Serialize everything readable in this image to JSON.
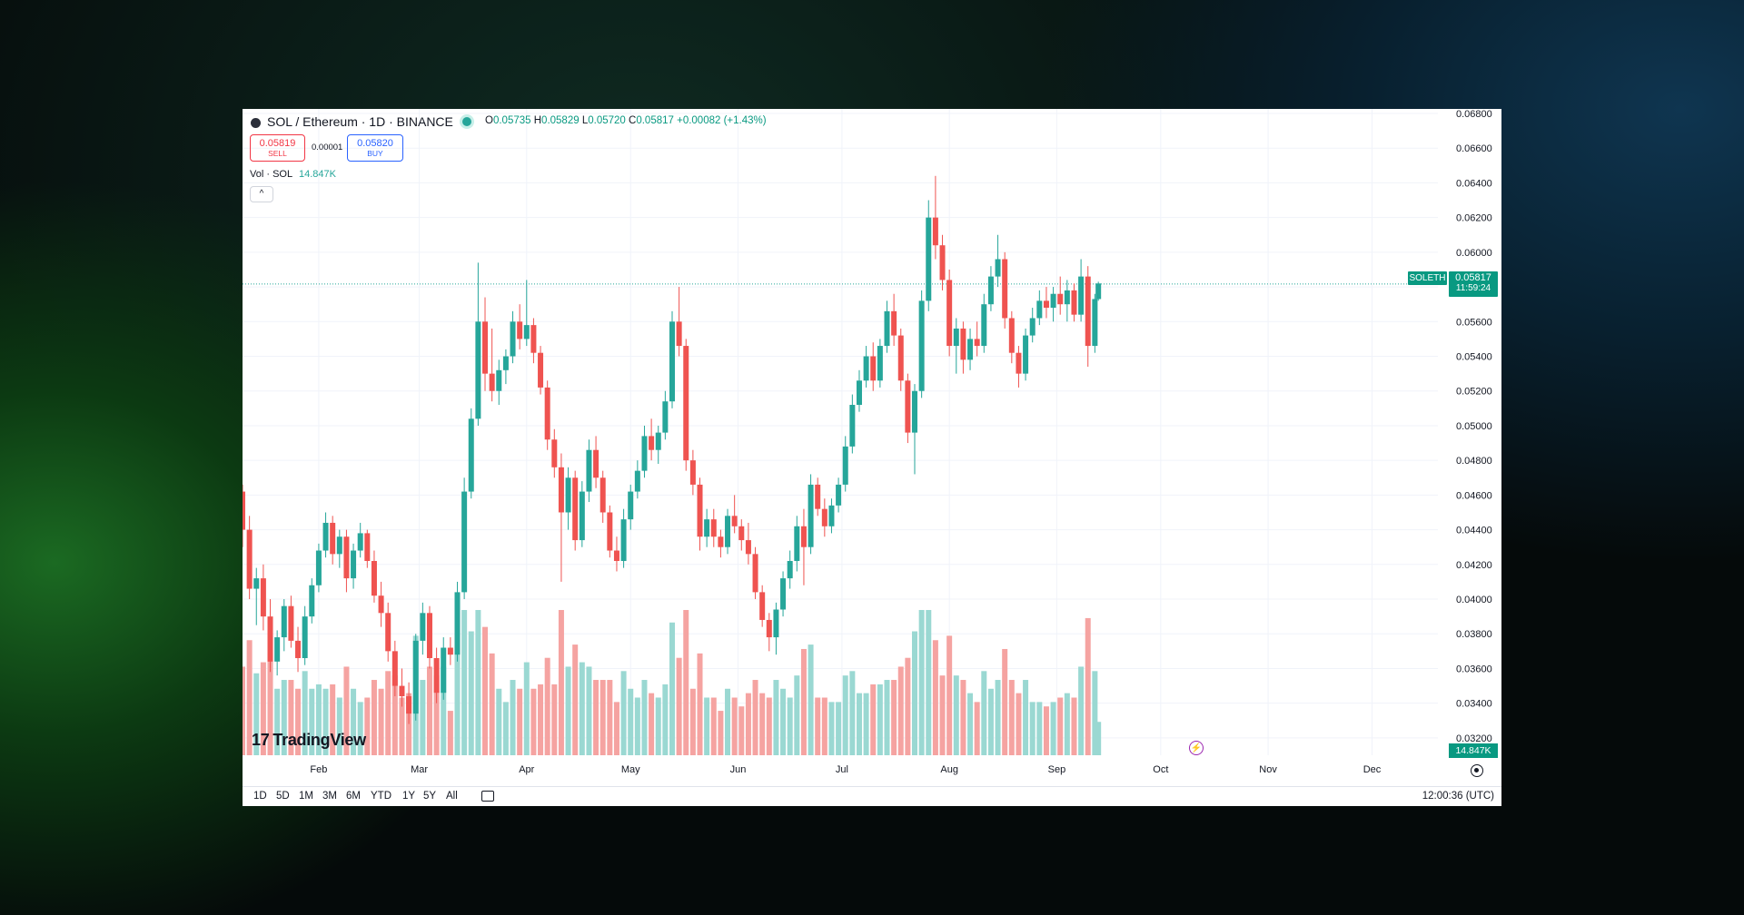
{
  "header": {
    "symbol_title": "SOL / Ethereum · 1D · BINANCE",
    "ohlc": {
      "o_label": "O",
      "o": "0.05735",
      "h_label": "H",
      "h": "0.05829",
      "l_label": "L",
      "l": "0.05720",
      "c_label": "C",
      "c": "0.05817",
      "change": "+0.00082 (+1.43%)"
    },
    "sell_price": "0.05819",
    "sell_label": "SELL",
    "spread": "0.00001",
    "buy_price": "0.05820",
    "buy_label": "BUY",
    "volume_label": "Vol · SOL",
    "volume_value": "14.847K",
    "collapse_glyph": "^"
  },
  "price_axis": {
    "ticks": [
      "0.06800",
      "0.06600",
      "0.06400",
      "0.06200",
      "0.06000",
      "0.05800",
      "0.05600",
      "0.05400",
      "0.05200",
      "0.05000",
      "0.04800",
      "0.04600",
      "0.04400",
      "0.04200",
      "0.04000",
      "0.03800",
      "0.03600",
      "0.03400",
      "0.03200"
    ],
    "symbol_tag": "SOLETH",
    "last_price": "0.05817",
    "countdown": "11:59:24",
    "volume_tag": "14.847K"
  },
  "time_axis": {
    "months": [
      "Feb",
      "Mar",
      "Apr",
      "May",
      "Jun",
      "Jul",
      "Aug",
      "Sep",
      "Oct",
      "Nov",
      "Dec"
    ]
  },
  "timeframes": [
    "1D",
    "5D",
    "1M",
    "3M",
    "6M",
    "YTD",
    "1Y",
    "5Y",
    "All"
  ],
  "clock": "12:00:36 (UTC)",
  "logo_text": "TradingView",
  "colors": {
    "up": "#26a69a",
    "down": "#ef5350",
    "up_volume": "#9ad8d2",
    "down_volume": "#f5a3a1",
    "accent_blue": "#2962ff",
    "sell_red": "#f23645"
  },
  "icons": [
    "chart-symbol-icon",
    "live-status-icon",
    "chevron-up-icon",
    "tradingview-logo-icon",
    "lightning-icon",
    "settings-icon",
    "calendar-icon"
  ],
  "chart_data": {
    "type": "candlestick",
    "x_unit": "date (2024)",
    "ylim": [
      0.031,
      0.068
    ],
    "last_price_line": 0.05817,
    "ohlc": [
      [
        "2024-01-10",
        0.0462,
        0.0466,
        0.043,
        0.044
      ],
      [
        "2024-01-12",
        0.044,
        0.0448,
        0.04,
        0.0406
      ],
      [
        "2024-01-14",
        0.0406,
        0.0418,
        0.0385,
        0.0412
      ],
      [
        "2024-01-16",
        0.0412,
        0.042,
        0.0382,
        0.039
      ],
      [
        "2024-01-18",
        0.039,
        0.04,
        0.0358,
        0.0364
      ],
      [
        "2024-01-20",
        0.0364,
        0.0382,
        0.0356,
        0.0378
      ],
      [
        "2024-01-22",
        0.0378,
        0.04,
        0.037,
        0.0396
      ],
      [
        "2024-01-24",
        0.0396,
        0.0402,
        0.0372,
        0.0376
      ],
      [
        "2024-01-26",
        0.0376,
        0.0384,
        0.0358,
        0.0366
      ],
      [
        "2024-01-28",
        0.0366,
        0.0396,
        0.0362,
        0.039
      ],
      [
        "2024-01-30",
        0.039,
        0.0412,
        0.0386,
        0.0408
      ],
      [
        "2024-02-01",
        0.0408,
        0.0432,
        0.0404,
        0.0428
      ],
      [
        "2024-02-03",
        0.0428,
        0.045,
        0.0424,
        0.0444
      ],
      [
        "2024-02-05",
        0.0444,
        0.0448,
        0.042,
        0.0426
      ],
      [
        "2024-02-07",
        0.0426,
        0.044,
        0.0418,
        0.0436
      ],
      [
        "2024-02-09",
        0.0436,
        0.044,
        0.0404,
        0.0412
      ],
      [
        "2024-02-11",
        0.0412,
        0.0432,
        0.0406,
        0.0428
      ],
      [
        "2024-02-13",
        0.0428,
        0.0444,
        0.0424,
        0.0438
      ],
      [
        "2024-02-15",
        0.0438,
        0.044,
        0.0418,
        0.0422
      ],
      [
        "2024-02-17",
        0.0422,
        0.0428,
        0.0398,
        0.0402
      ],
      [
        "2024-02-19",
        0.0402,
        0.041,
        0.0384,
        0.0392
      ],
      [
        "2024-02-21",
        0.0392,
        0.0398,
        0.0364,
        0.037
      ],
      [
        "2024-02-23",
        0.037,
        0.0376,
        0.0344,
        0.035
      ],
      [
        "2024-02-25",
        0.035,
        0.036,
        0.0338,
        0.0344
      ],
      [
        "2024-02-27",
        0.0344,
        0.0352,
        0.0328,
        0.0334
      ],
      [
        "2024-02-29",
        0.0334,
        0.038,
        0.033,
        0.0376
      ],
      [
        "2024-03-02",
        0.0376,
        0.0398,
        0.0368,
        0.0392
      ],
      [
        "2024-03-04",
        0.0392,
        0.0396,
        0.036,
        0.0366
      ],
      [
        "2024-03-06",
        0.0366,
        0.0372,
        0.034,
        0.0346
      ],
      [
        "2024-03-08",
        0.0346,
        0.0378,
        0.0342,
        0.0372
      ],
      [
        "2024-03-10",
        0.0372,
        0.0378,
        0.0362,
        0.0368
      ],
      [
        "2024-03-12",
        0.0368,
        0.041,
        0.0364,
        0.0404
      ],
      [
        "2024-03-14",
        0.0404,
        0.047,
        0.04,
        0.0462
      ],
      [
        "2024-03-16",
        0.0462,
        0.051,
        0.0458,
        0.0504
      ],
      [
        "2024-03-18",
        0.0504,
        0.0594,
        0.05,
        0.056
      ],
      [
        "2024-03-20",
        0.056,
        0.0574,
        0.052,
        0.053
      ],
      [
        "2024-03-22",
        0.053,
        0.0556,
        0.0514,
        0.052
      ],
      [
        "2024-03-24",
        0.052,
        0.0538,
        0.0512,
        0.0532
      ],
      [
        "2024-03-26",
        0.0532,
        0.0544,
        0.0524,
        0.054
      ],
      [
        "2024-03-28",
        0.054,
        0.0566,
        0.0536,
        0.056
      ],
      [
        "2024-03-30",
        0.056,
        0.057,
        0.0544,
        0.055
      ],
      [
        "2024-04-01",
        0.055,
        0.0584,
        0.0546,
        0.0558
      ],
      [
        "2024-04-03",
        0.0558,
        0.0562,
        0.0536,
        0.0542
      ],
      [
        "2024-04-05",
        0.0542,
        0.0546,
        0.0518,
        0.0522
      ],
      [
        "2024-04-07",
        0.0522,
        0.0526,
        0.0486,
        0.0492
      ],
      [
        "2024-04-09",
        0.0492,
        0.0498,
        0.047,
        0.0476
      ],
      [
        "2024-04-11",
        0.0476,
        0.0484,
        0.041,
        0.045
      ],
      [
        "2024-04-13",
        0.045,
        0.0476,
        0.044,
        0.047
      ],
      [
        "2024-04-15",
        0.047,
        0.0474,
        0.0428,
        0.0434
      ],
      [
        "2024-04-17",
        0.0434,
        0.0468,
        0.043,
        0.0462
      ],
      [
        "2024-04-19",
        0.0462,
        0.0492,
        0.0456,
        0.0486
      ],
      [
        "2024-04-21",
        0.0486,
        0.0494,
        0.0464,
        0.047
      ],
      [
        "2024-04-23",
        0.047,
        0.0474,
        0.0444,
        0.045
      ],
      [
        "2024-04-25",
        0.045,
        0.0454,
        0.0424,
        0.0428
      ],
      [
        "2024-04-27",
        0.0428,
        0.0436,
        0.0416,
        0.0422
      ],
      [
        "2024-04-29",
        0.0422,
        0.0452,
        0.0418,
        0.0446
      ],
      [
        "2024-05-01",
        0.0446,
        0.0466,
        0.044,
        0.0462
      ],
      [
        "2024-05-03",
        0.0462,
        0.048,
        0.0458,
        0.0474
      ],
      [
        "2024-05-05",
        0.0474,
        0.05,
        0.047,
        0.0494
      ],
      [
        "2024-05-07",
        0.0494,
        0.0504,
        0.048,
        0.0486
      ],
      [
        "2024-05-09",
        0.0486,
        0.05,
        0.0478,
        0.0496
      ],
      [
        "2024-05-11",
        0.0496,
        0.052,
        0.0492,
        0.0514
      ],
      [
        "2024-05-13",
        0.0514,
        0.0566,
        0.051,
        0.056
      ],
      [
        "2024-05-15",
        0.056,
        0.058,
        0.054,
        0.0546
      ],
      [
        "2024-05-17",
        0.0546,
        0.055,
        0.0474,
        0.048
      ],
      [
        "2024-05-19",
        0.048,
        0.0486,
        0.046,
        0.0466
      ],
      [
        "2024-05-21",
        0.0466,
        0.047,
        0.0428,
        0.0436
      ],
      [
        "2024-05-23",
        0.0436,
        0.0452,
        0.043,
        0.0446
      ],
      [
        "2024-05-25",
        0.0446,
        0.0452,
        0.043,
        0.0436
      ],
      [
        "2024-05-27",
        0.0436,
        0.044,
        0.0424,
        0.043
      ],
      [
        "2024-05-29",
        0.043,
        0.0452,
        0.0426,
        0.0448
      ],
      [
        "2024-05-31",
        0.0448,
        0.046,
        0.0438,
        0.0442
      ],
      [
        "2024-06-02",
        0.0442,
        0.0446,
        0.0428,
        0.0434
      ],
      [
        "2024-06-04",
        0.0434,
        0.0444,
        0.042,
        0.0426
      ],
      [
        "2024-06-06",
        0.0426,
        0.043,
        0.04,
        0.0404
      ],
      [
        "2024-06-08",
        0.0404,
        0.0408,
        0.0384,
        0.0388
      ],
      [
        "2024-06-10",
        0.0388,
        0.0392,
        0.037,
        0.0378
      ],
      [
        "2024-06-12",
        0.0378,
        0.0398,
        0.0368,
        0.0394
      ],
      [
        "2024-06-14",
        0.0394,
        0.0416,
        0.039,
        0.0412
      ],
      [
        "2024-06-16",
        0.0412,
        0.0428,
        0.0406,
        0.0422
      ],
      [
        "2024-06-18",
        0.0422,
        0.0448,
        0.0416,
        0.0442
      ],
      [
        "2024-06-20",
        0.0442,
        0.0452,
        0.0408,
        0.043
      ],
      [
        "2024-06-22",
        0.043,
        0.0472,
        0.0426,
        0.0466
      ],
      [
        "2024-06-24",
        0.0466,
        0.047,
        0.0448,
        0.0452
      ],
      [
        "2024-06-26",
        0.0452,
        0.0458,
        0.0436,
        0.0442
      ],
      [
        "2024-06-28",
        0.0442,
        0.0458,
        0.0438,
        0.0454
      ],
      [
        "2024-06-30",
        0.0454,
        0.047,
        0.045,
        0.0466
      ],
      [
        "2024-07-02",
        0.0466,
        0.0494,
        0.0462,
        0.0488
      ],
      [
        "2024-07-04",
        0.0488,
        0.0518,
        0.0484,
        0.0512
      ],
      [
        "2024-07-06",
        0.0512,
        0.0532,
        0.0508,
        0.0526
      ],
      [
        "2024-07-08",
        0.0526,
        0.0546,
        0.0522,
        0.054
      ],
      [
        "2024-07-10",
        0.054,
        0.0548,
        0.052,
        0.0526
      ],
      [
        "2024-07-12",
        0.0526,
        0.055,
        0.0522,
        0.0546
      ],
      [
        "2024-07-14",
        0.0546,
        0.0572,
        0.0542,
        0.0566
      ],
      [
        "2024-07-16",
        0.0566,
        0.0576,
        0.0546,
        0.0552
      ],
      [
        "2024-07-18",
        0.0552,
        0.0556,
        0.052,
        0.0526
      ],
      [
        "2024-07-20",
        0.0526,
        0.053,
        0.049,
        0.0496
      ],
      [
        "2024-07-22",
        0.0496,
        0.0524,
        0.0472,
        0.052
      ],
      [
        "2024-07-24",
        0.052,
        0.0578,
        0.0516,
        0.0572
      ],
      [
        "2024-07-26",
        0.0572,
        0.063,
        0.0566,
        0.062
      ],
      [
        "2024-07-28",
        0.062,
        0.0644,
        0.0596,
        0.0604
      ],
      [
        "2024-07-30",
        0.0604,
        0.061,
        0.0578,
        0.0584
      ],
      [
        "2024-08-01",
        0.0584,
        0.059,
        0.054,
        0.0546
      ],
      [
        "2024-08-03",
        0.0546,
        0.0562,
        0.053,
        0.0556
      ],
      [
        "2024-08-05",
        0.0556,
        0.056,
        0.053,
        0.0538
      ],
      [
        "2024-08-07",
        0.0538,
        0.0556,
        0.0532,
        0.055
      ],
      [
        "2024-08-09",
        0.055,
        0.056,
        0.054,
        0.0546
      ],
      [
        "2024-08-11",
        0.0546,
        0.0576,
        0.0542,
        0.057
      ],
      [
        "2024-08-13",
        0.057,
        0.0592,
        0.0566,
        0.0586
      ],
      [
        "2024-08-15",
        0.0586,
        0.061,
        0.058,
        0.0596
      ],
      [
        "2024-08-17",
        0.0596,
        0.06,
        0.0556,
        0.0562
      ],
      [
        "2024-08-19",
        0.0562,
        0.0566,
        0.0536,
        0.0542
      ],
      [
        "2024-08-21",
        0.0542,
        0.0546,
        0.0522,
        0.053
      ],
      [
        "2024-08-23",
        0.053,
        0.0556,
        0.0526,
        0.0552
      ],
      [
        "2024-08-25",
        0.0552,
        0.0568,
        0.0548,
        0.0562
      ],
      [
        "2024-08-27",
        0.0562,
        0.0578,
        0.0558,
        0.0572
      ],
      [
        "2024-08-29",
        0.0572,
        0.058,
        0.0562,
        0.0568
      ],
      [
        "2024-08-31",
        0.0568,
        0.058,
        0.056,
        0.0576
      ],
      [
        "2024-09-02",
        0.0576,
        0.0586,
        0.0564,
        0.057
      ],
      [
        "2024-09-04",
        0.057,
        0.0584,
        0.056,
        0.0578
      ],
      [
        "2024-09-06",
        0.0578,
        0.0582,
        0.056,
        0.0564
      ],
      [
        "2024-09-08",
        0.0564,
        0.0596,
        0.056,
        0.0586
      ],
      [
        "2024-09-10",
        0.0586,
        0.0592,
        0.0534,
        0.0546
      ],
      [
        "2024-09-12",
        0.0546,
        0.0576,
        0.0542,
        0.0573
      ],
      [
        "2024-09-13",
        0.0573,
        0.0583,
        0.0572,
        0.0582
      ]
    ],
    "volume_axis_max": 14.847
  }
}
